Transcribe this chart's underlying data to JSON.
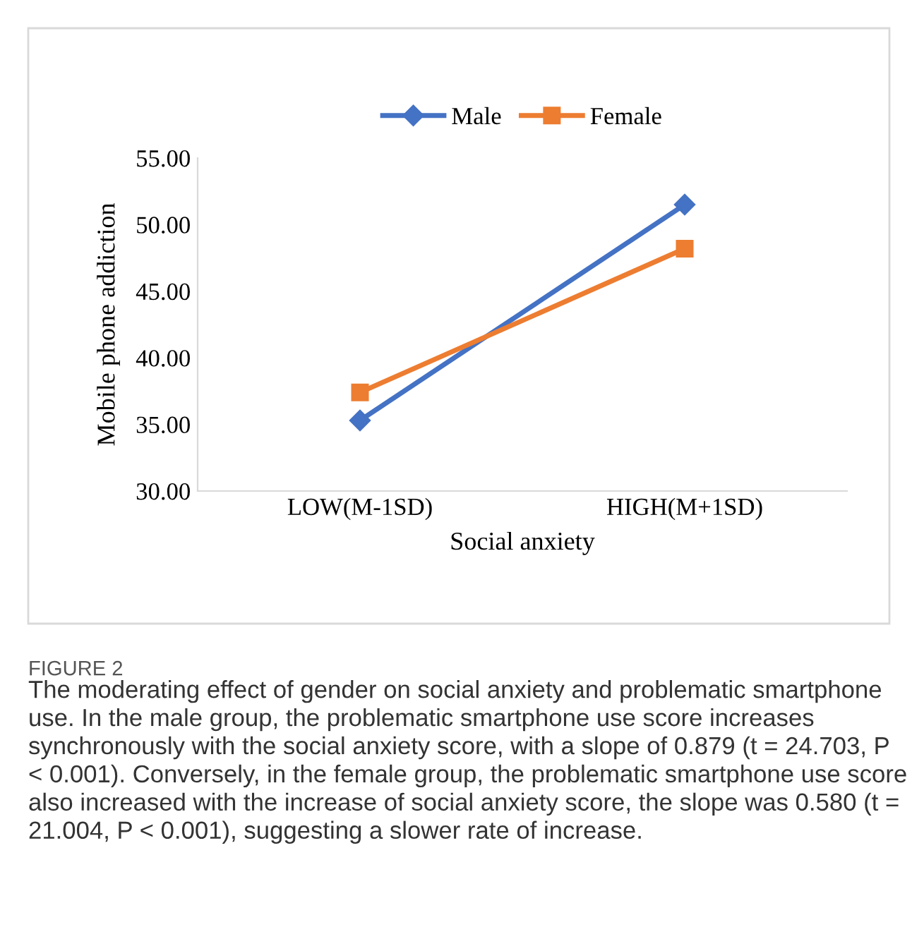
{
  "chart_data": {
    "type": "line",
    "xlabel": "Social anxiety",
    "ylabel": "Mobile phone addiction",
    "categories": [
      "LOW(M-1SD)",
      "HIGH(M+1SD)"
    ],
    "series": [
      {
        "name": "Male",
        "color": "#4472c4",
        "values": [
          35.3,
          51.5
        ],
        "marker": "diamond"
      },
      {
        "name": "Female",
        "color": "#ed7d31",
        "values": [
          37.4,
          48.2
        ],
        "marker": "square"
      }
    ],
    "ylim": [
      30,
      55
    ],
    "yticks": [
      {
        "value": 30,
        "label": "30.00"
      },
      {
        "value": 35,
        "label": "35.00"
      },
      {
        "value": 40,
        "label": "40.00"
      },
      {
        "value": 45,
        "label": "45.00"
      },
      {
        "value": 50,
        "label": "50.00"
      },
      {
        "value": 55,
        "label": "55.00"
      }
    ],
    "grid": false,
    "legend": "top",
    "line_style": "solid",
    "annotations": [
      "FIGURE 2",
      "The moderating effect of gender on social anxiety and problematic smartphone use. In the male group, the problematic smartphone use score increases synchronously with the social anxiety score, with a slope of 0.879 (t = 24.703, P < 0.001). Conversely, in the female group, the problematic smartphone use score also increased with the increase of social anxiety score, the slope was 0.580 (t = 21.004, P < 0.001), suggesting a slower rate of increase."
    ]
  }
}
